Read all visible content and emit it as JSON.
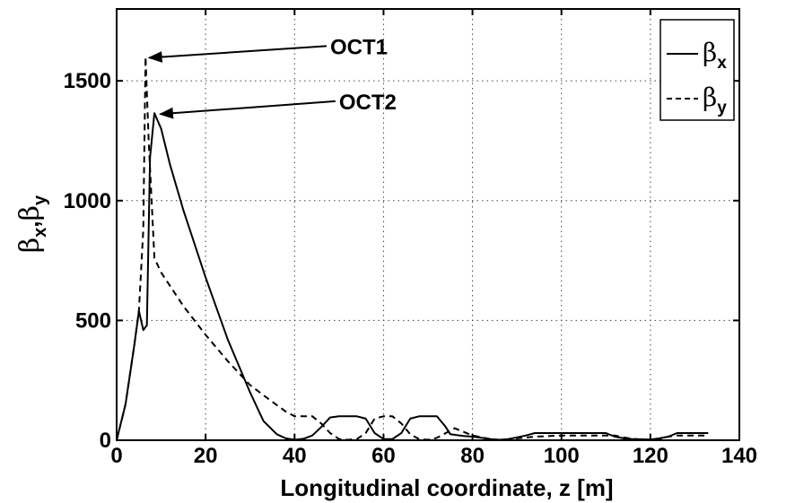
{
  "chart_data": {
    "type": "line",
    "title": "",
    "xlabel": "Longitudinal coordinate, z [m]",
    "ylabel": "βx,βy",
    "ylabel_parts": {
      "greek": "β",
      "sub_x": "x",
      "comma": ",",
      "sub_y": "y"
    },
    "xlim": [
      0,
      140
    ],
    "ylim": [
      0,
      1800
    ],
    "xticks": [
      0,
      20,
      40,
      60,
      80,
      100,
      120,
      140
    ],
    "yticks": [
      0,
      500,
      1000,
      1500
    ],
    "xtick_labels": [
      "0",
      "20",
      "40",
      "60",
      "80",
      "100",
      "120",
      "140"
    ],
    "ytick_labels": [
      "0",
      "500",
      "1000",
      "1500"
    ],
    "grid": true,
    "legend_position": "top-right",
    "series": [
      {
        "name": "βx",
        "legend_greek": "β",
        "legend_sub": "x",
        "style": "solid",
        "color": "#000000",
        "x": [
          0,
          2,
          4,
          5,
          6,
          6.8,
          7.5,
          8.5,
          10,
          12,
          15,
          20,
          25,
          30,
          33,
          36,
          38,
          40,
          42,
          44,
          46,
          48,
          50,
          52,
          54,
          56,
          58,
          60,
          62,
          64,
          66,
          68,
          70,
          72,
          74,
          75,
          78,
          80,
          82,
          84,
          86,
          88,
          90,
          92,
          94,
          100,
          105,
          110,
          112,
          114,
          116,
          118,
          120,
          122,
          124,
          126,
          130,
          133
        ],
        "y": [
          0,
          150,
          400,
          540,
          460,
          480,
          1180,
          1365,
          1300,
          1150,
          960,
          680,
          420,
          200,
          80,
          25,
          8,
          2,
          6,
          20,
          55,
          95,
          100,
          100,
          100,
          90,
          30,
          5,
          5,
          30,
          90,
          100,
          100,
          100,
          55,
          25,
          18,
          15,
          10,
          5,
          2,
          5,
          12,
          20,
          30,
          30,
          30,
          30,
          15,
          8,
          5,
          4,
          3,
          8,
          15,
          30,
          30,
          30
        ]
      },
      {
        "name": "βy",
        "legend_greek": "β",
        "legend_sub": "y",
        "style": "dashed",
        "color": "#000000",
        "x": [
          0,
          2,
          4,
          5,
          6,
          6.5,
          7.2,
          8.5,
          10,
          15,
          20,
          25,
          30,
          35,
          38,
          40,
          42,
          44,
          46,
          48,
          50,
          52,
          54,
          56,
          58,
          60,
          62,
          64,
          66,
          68,
          70,
          72,
          74,
          76,
          80,
          84,
          86,
          88,
          90,
          94,
          100,
          110,
          112,
          114,
          116,
          118,
          120,
          122,
          124,
          126,
          130,
          133
        ],
        "y": [
          0,
          150,
          400,
          540,
          880,
          1600,
          1250,
          760,
          700,
          560,
          440,
          330,
          230,
          160,
          120,
          100,
          100,
          100,
          70,
          30,
          5,
          2,
          5,
          30,
          90,
          100,
          100,
          70,
          25,
          5,
          2,
          10,
          30,
          50,
          20,
          5,
          2,
          3,
          8,
          15,
          20,
          20,
          20,
          12,
          6,
          3,
          2,
          5,
          15,
          20,
          20,
          20
        ]
      }
    ],
    "annotations": [
      {
        "text": "OCT1",
        "target": [
          6.5,
          1600
        ],
        "text_pos": [
          48,
          1645
        ]
      },
      {
        "text": "OCT2",
        "target": [
          9,
          1365
        ],
        "text_pos": [
          50,
          1415
        ]
      }
    ]
  }
}
